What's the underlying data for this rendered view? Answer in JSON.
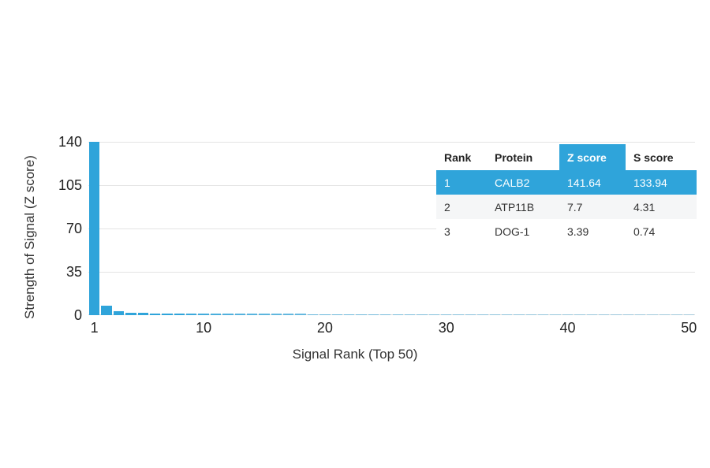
{
  "chart_data": {
    "type": "bar",
    "title": "",
    "xlabel": "Signal Rank (Top 50)",
    "ylabel": "Strength of Signal (Z score)",
    "x_ticks": [
      1,
      10,
      20,
      30,
      40,
      50
    ],
    "y_ticks": [
      0,
      35,
      70,
      105,
      140
    ],
    "ylim": [
      0,
      140
    ],
    "x_range_ranks": [
      1,
      50
    ],
    "grid": true,
    "bar_color": "#2fa4da",
    "values": [
      141.64,
      7.7,
      3.39,
      1.9,
      1.7,
      1.6,
      1.5,
      1.4,
      1.3,
      1.25,
      1.2,
      1.15,
      1.1,
      1.08,
      1.05,
      1.02,
      1.0,
      0.98,
      0.95,
      0.92,
      0.9,
      0.88,
      0.85,
      0.83,
      0.8,
      0.78,
      0.76,
      0.74,
      0.72,
      0.7,
      0.68,
      0.66,
      0.65,
      0.63,
      0.62,
      0.6,
      0.59,
      0.58,
      0.56,
      0.55,
      0.54,
      0.53,
      0.52,
      0.51,
      0.5,
      0.49,
      0.48,
      0.47,
      0.46,
      0.45
    ]
  },
  "table": {
    "columns": [
      "Rank",
      "Protein",
      "Z score",
      "S score"
    ],
    "highlight_column_index": 2,
    "highlight_color": "#2fa4da",
    "rows": [
      {
        "rank": "1",
        "protein": "CALB2",
        "z_score": "141.64",
        "s_score": "133.94",
        "highlighted": true
      },
      {
        "rank": "2",
        "protein": "ATP11B",
        "z_score": "7.7",
        "s_score": "4.31",
        "highlighted": false
      },
      {
        "rank": "3",
        "protein": "DOG-1",
        "z_score": "3.39",
        "s_score": "0.74",
        "highlighted": false
      }
    ]
  }
}
